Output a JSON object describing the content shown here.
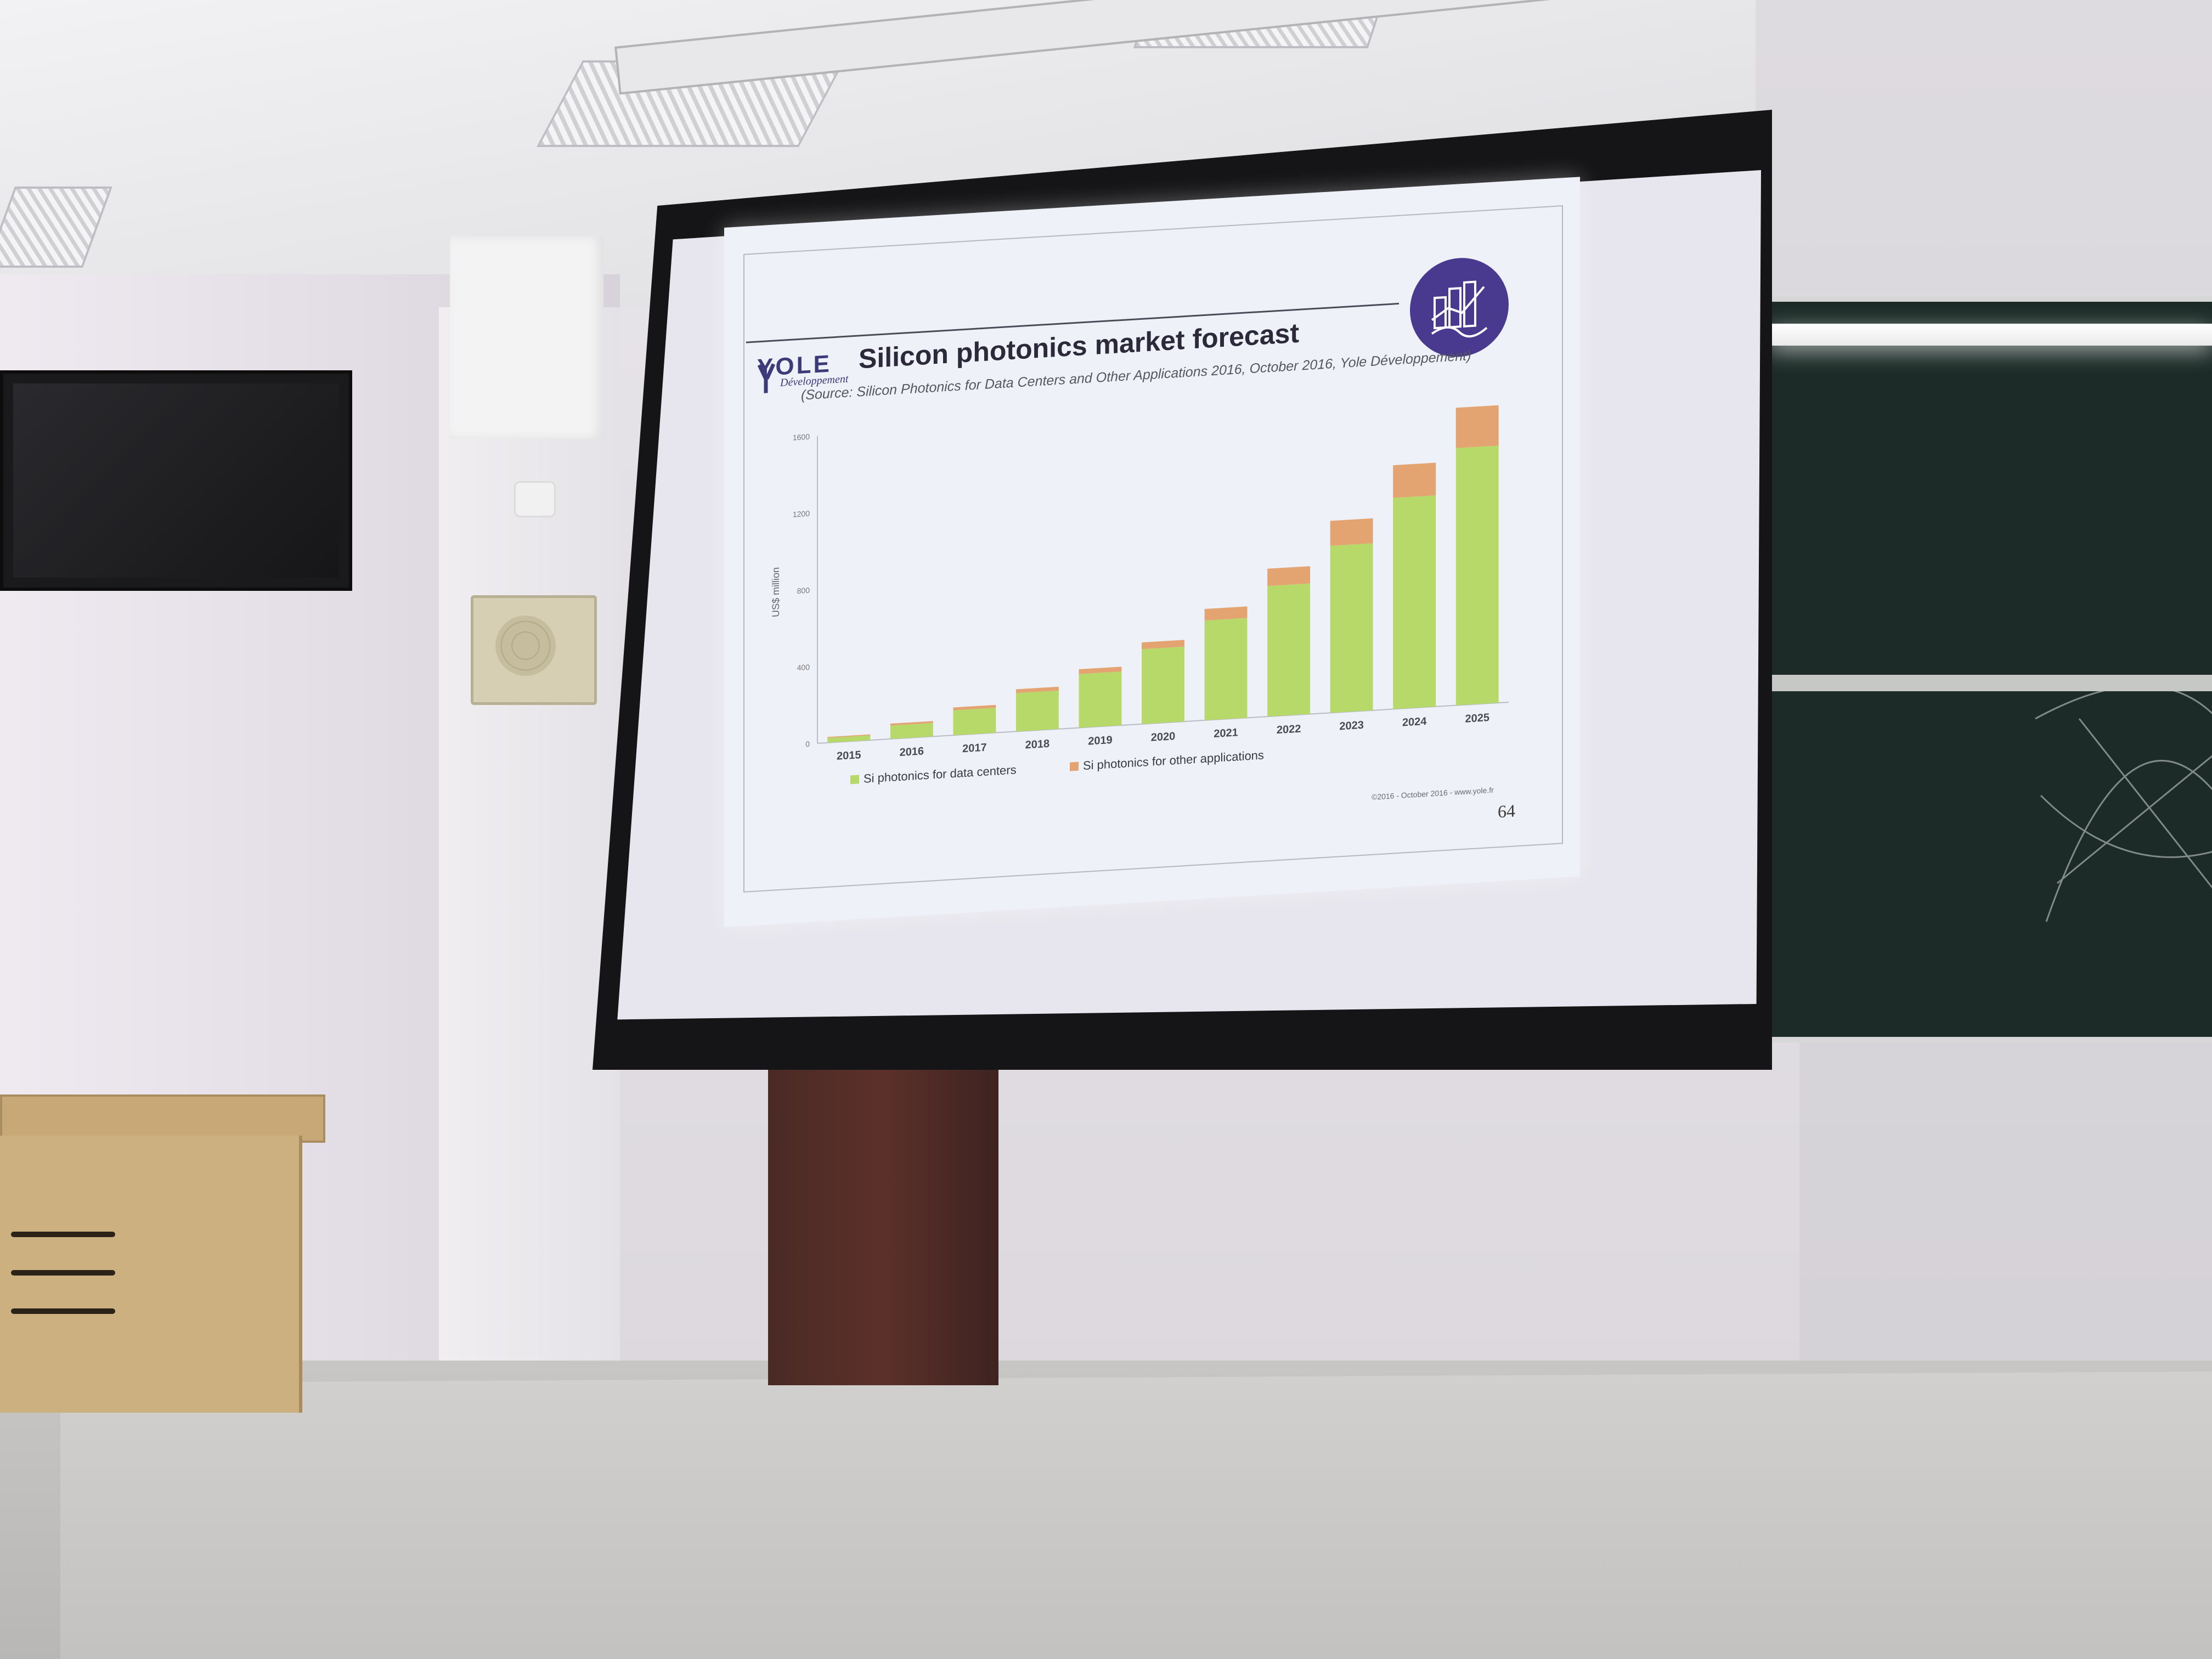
{
  "slide": {
    "logo_text": "YOLE",
    "logo_sub": "Développement",
    "title": "Silicon photonics market forecast",
    "source": "(Source: Silicon Photonics for Data Centers and Other Applications 2016, October 2016, Yole Développement)",
    "copyright": "©2016 - October 2016 - www.yole.fr",
    "page_number": "64"
  },
  "colors": {
    "data_centers": "#b7d96a",
    "other_applications": "#e3a472",
    "logo_purple": "#4a3a8f"
  },
  "chart_data": {
    "type": "bar",
    "stacked": true,
    "ylabel": "US$ million",
    "ylim": [
      0,
      1600
    ],
    "yticks": [
      "0",
      "400",
      "800",
      "1200",
      "1600"
    ],
    "categories": [
      "2015",
      "2016",
      "2017",
      "2018",
      "2019",
      "2020",
      "2021",
      "2022",
      "2023",
      "2024",
      "2025"
    ],
    "series": [
      {
        "name": "Si photonics for data centers",
        "color": "#b7d96a",
        "values": [
          25,
          70,
          130,
          200,
          280,
          390,
          520,
          680,
          870,
          1100,
          1340
        ]
      },
      {
        "name": "Si photonics for other applications",
        "color": "#e3a472",
        "values": [
          5,
          10,
          15,
          20,
          25,
          35,
          60,
          90,
          130,
          170,
          210
        ]
      }
    ],
    "legend_position": "bottom",
    "grid": false
  }
}
